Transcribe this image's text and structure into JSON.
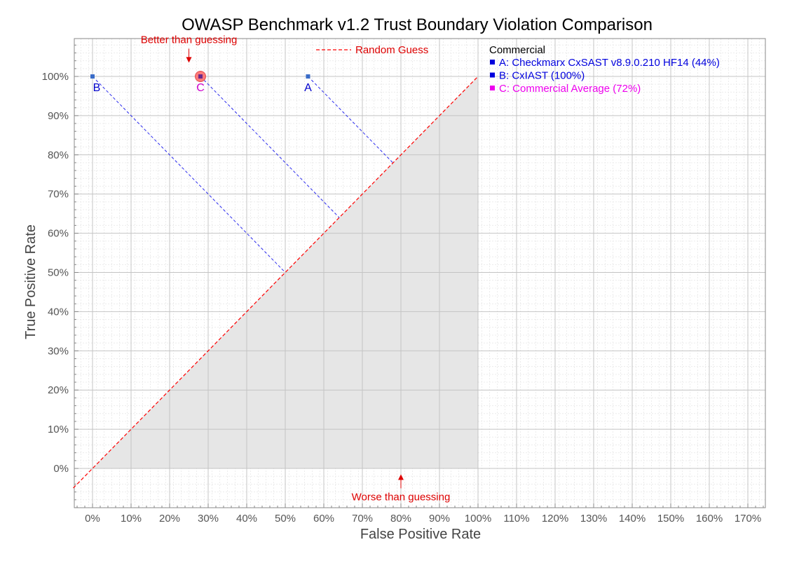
{
  "chart_data": {
    "type": "scatter",
    "title": "OWASP Benchmark v1.2 Trust Boundary Violation Comparison",
    "xlabel": "False Positive Rate",
    "ylabel": "True Positive Rate",
    "xlim": [
      -5,
      177
    ],
    "ylim": [
      -10,
      110
    ],
    "x_ticks": [
      0,
      10,
      20,
      30,
      40,
      50,
      60,
      70,
      80,
      90,
      100,
      110,
      120,
      130,
      140,
      150,
      160,
      170
    ],
    "x_tick_labels": [
      "0%",
      "10%",
      "20%",
      "30%",
      "40%",
      "50%",
      "60%",
      "70%",
      "80%",
      "90%",
      "100%",
      "110%",
      "120%",
      "130%",
      "140%",
      "150%",
      "160%",
      "170%"
    ],
    "y_ticks": [
      0,
      10,
      20,
      30,
      40,
      50,
      60,
      70,
      80,
      90,
      100
    ],
    "y_tick_labels": [
      "0%",
      "10%",
      "20%",
      "30%",
      "40%",
      "50%",
      "60%",
      "70%",
      "80%",
      "90%",
      "100%"
    ],
    "grid": true,
    "shaded_region": "worse than guessing (below diagonal, 0-100%)",
    "random_guess_line": {
      "label": "Random Guess",
      "color": "#ff0000",
      "from": [
        -5,
        -5
      ],
      "to": [
        100,
        100
      ]
    },
    "annotations": [
      {
        "text": "Better than guessing",
        "arrow": "down",
        "x": 25,
        "y": 103.5,
        "color": "#dd0000"
      },
      {
        "text": "Worse than guessing",
        "arrow": "up",
        "x": 80,
        "y": -1.5,
        "color": "#dd0000"
      }
    ],
    "legend": {
      "position": "top-right",
      "heading": "Commercial",
      "entries": [
        {
          "label": "A: Checkmarx CxSAST v8.9.0.210 HF14 (44%)",
          "color": "#0000dd"
        },
        {
          "label": "B: CxIAST (100%)",
          "color": "#0000dd"
        },
        {
          "label": "C: Commercial Average (72%)",
          "color": "#ee00ee"
        }
      ]
    },
    "points": [
      {
        "label": "A",
        "x": 55.9,
        "y": 100,
        "color": "#3a6cc8",
        "label_color": "#0000cc",
        "score_line": true
      },
      {
        "label": "B",
        "x": 0,
        "y": 100,
        "color": "#3a6cc8",
        "label_color": "#0000cc",
        "score_line": true
      },
      {
        "label": "C",
        "x": 28,
        "y": 100,
        "color": "#6b2a8a",
        "label_color": "#cc00cc",
        "highlight": true,
        "score_line": true
      }
    ]
  }
}
